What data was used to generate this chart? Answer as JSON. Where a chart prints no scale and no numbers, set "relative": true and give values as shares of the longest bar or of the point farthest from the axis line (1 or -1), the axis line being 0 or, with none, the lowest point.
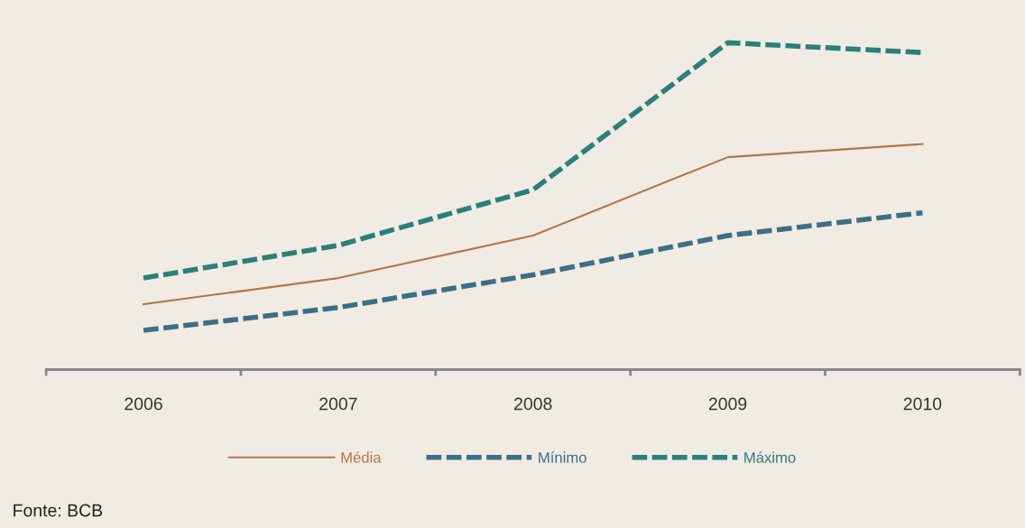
{
  "chart_data": {
    "type": "line",
    "relative": true,
    "categories": [
      "2006",
      "2007",
      "2008",
      "2009",
      "2010"
    ],
    "series": [
      {
        "name": "Média",
        "color": "#b0784a",
        "line_style": "solid",
        "values": [
          0.2,
          0.28,
          0.41,
          0.65,
          0.69
        ]
      },
      {
        "name": "Mínimo",
        "color": "#3a6f88",
        "line_style": "dashed",
        "values": [
          0.12,
          0.19,
          0.29,
          0.41,
          0.48
        ]
      },
      {
        "name": "Máximo",
        "color": "#2b7f7b",
        "line_style": "dashed",
        "values": [
          0.28,
          0.38,
          0.55,
          1.0,
          0.97
        ]
      }
    ],
    "legend": "bottom",
    "grid": false,
    "marker": "none",
    "annotations": [
      "Fonte: BCB"
    ]
  }
}
